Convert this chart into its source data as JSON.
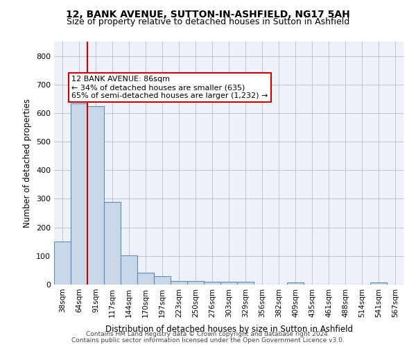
{
  "title_line1": "12, BANK AVENUE, SUTTON-IN-ASHFIELD, NG17 5AH",
  "title_line2": "Size of property relative to detached houses in Sutton in Ashfield",
  "xlabel": "Distribution of detached houses by size in Sutton in Ashfield",
  "ylabel": "Number of detached properties",
  "categories": [
    "38sqm",
    "64sqm",
    "91sqm",
    "117sqm",
    "144sqm",
    "170sqm",
    "197sqm",
    "223sqm",
    "250sqm",
    "276sqm",
    "303sqm",
    "329sqm",
    "356sqm",
    "382sqm",
    "409sqm",
    "435sqm",
    "461sqm",
    "488sqm",
    "514sqm",
    "541sqm",
    "567sqm"
  ],
  "values": [
    150,
    635,
    625,
    290,
    103,
    42,
    29,
    12,
    12,
    10,
    10,
    10,
    0,
    0,
    8,
    0,
    0,
    0,
    0,
    8,
    0
  ],
  "bar_color": "#c8d8e8",
  "bar_edge_color": "#5b8db8",
  "grid_color": "#c0c8d8",
  "background_color": "#eef2f8",
  "vline_color": "#cc0000",
  "annotation_text": "12 BANK AVENUE: 86sqm\n← 34% of detached houses are smaller (635)\n65% of semi-detached houses are larger (1,232) →",
  "annotation_box_color": "#cc0000",
  "ylim": [
    0,
    850
  ],
  "yticks": [
    0,
    100,
    200,
    300,
    400,
    500,
    600,
    700,
    800
  ],
  "footer_line1": "Contains HM Land Registry data © Crown copyright and database right 2024.",
  "footer_line2": "Contains public sector information licensed under the Open Government Licence v3.0."
}
